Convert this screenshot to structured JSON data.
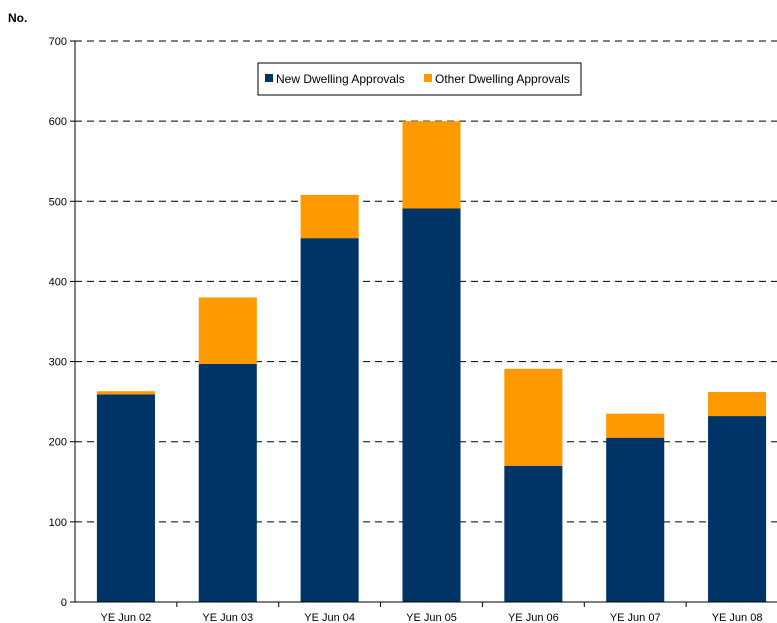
{
  "chart_data": {
    "type": "bar",
    "stacked": true,
    "ylabel": "No.",
    "categories": [
      "YE Jun 02",
      "YE Jun 03",
      "YE Jun 04",
      "YE Jun 05",
      "YE Jun 06",
      "YE Jun 07",
      "YE Jun 08"
    ],
    "series": [
      {
        "name": "New Dwelling Approvals",
        "color": "#003366",
        "values": [
          259,
          297,
          454,
          491,
          170,
          205,
          232
        ]
      },
      {
        "name": "Other Dwelling Approvals",
        "color": "#ff9900",
        "values": [
          4,
          83,
          54,
          109,
          121,
          30,
          30
        ]
      }
    ],
    "ylim": [
      0,
      700
    ],
    "yticks": [
      0,
      100,
      200,
      300,
      400,
      500,
      600,
      700
    ],
    "grid": "horizontal-dashed",
    "legend_position": "top-center"
  }
}
